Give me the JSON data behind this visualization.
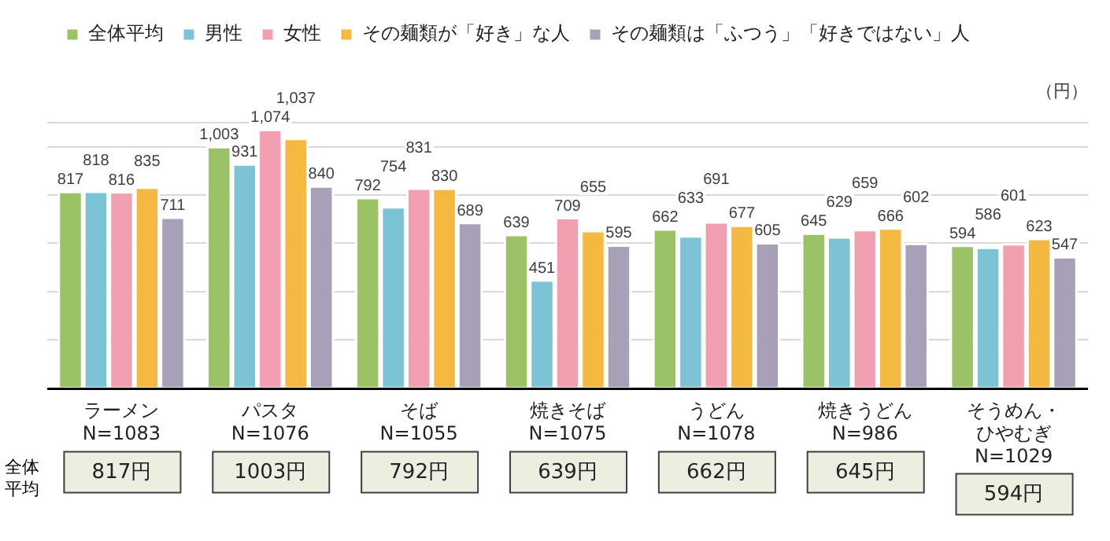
{
  "chart_data": {
    "type": "bar",
    "ylabel": "（円）",
    "categories": [
      "ラーメン\nN=1083",
      "パスタ\nN=1076",
      "そば\nN=1055",
      "焼きそば\nN=1075",
      "うどん\nN=1078",
      "焼きうどん\nN=986",
      "そうめん・ひやむぎ\nN=1029"
    ],
    "series": [
      {
        "name": "全体平均",
        "color": "#9bc264",
        "values": [
          817,
          1003,
          792,
          639,
          662,
          645,
          594
        ],
        "value_labels": [
          "817",
          "1,003",
          "792",
          "639",
          "662",
          "645",
          "594"
        ]
      },
      {
        "name": "男性",
        "color": "#7dc3d6",
        "values": [
          818,
          931,
          754,
          451,
          633,
          629,
          586
        ],
        "value_labels": [
          "818",
          "931",
          "754",
          "451",
          "633",
          "629",
          "586"
        ]
      },
      {
        "name": "女性",
        "color": "#f29fb2",
        "values": [
          816,
          1074,
          831,
          709,
          691,
          659,
          601
        ],
        "value_labels": [
          "816",
          "1,074",
          "831",
          "709",
          "691",
          "659",
          "601"
        ]
      },
      {
        "name": "その麺類が「好き」な人",
        "color": "#f5b942",
        "values": [
          835,
          1037,
          830,
          655,
          677,
          666,
          623
        ],
        "value_labels": [
          "835",
          "1,037",
          "830",
          "655",
          "677",
          "666",
          "623"
        ]
      },
      {
        "name": "その麺類は「ふつう」「好きではない」人",
        "color": "#a89fb8",
        "values": [
          711,
          840,
          689,
          595,
          605,
          602,
          547
        ],
        "value_labels": [
          "711",
          "840",
          "689",
          "595",
          "605",
          "602",
          "547"
        ]
      }
    ],
    "ylim": [
      0,
      1100
    ],
    "tick_labels": "x",
    "grid": "y",
    "legend": "top left",
    "annotations": [
      "全体平均",
      "817円",
      "1003円",
      "792円",
      "639円",
      "662円",
      "645円",
      "594円"
    ]
  }
}
